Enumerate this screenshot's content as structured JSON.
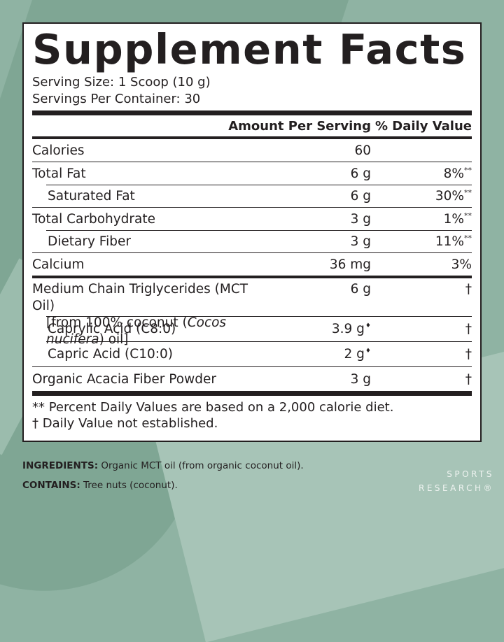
{
  "title": "Supplement Facts",
  "serving_size": "Serving Size: 1 Scoop (10 g)",
  "servings_per_container": "Servings Per Container: 30",
  "header": {
    "amount": "Amount Per Serving",
    "dv": "% Daily Value"
  },
  "rows": [
    {
      "name": "Calories",
      "amount": "60",
      "dv": ""
    },
    {
      "name": "Total Fat",
      "amount": "6 g",
      "dv": "8%",
      "dv_mark": "**"
    },
    {
      "name": "Saturated Fat",
      "amount": "6 g",
      "dv": "30%",
      "dv_mark": "**"
    },
    {
      "name": "Total Carbohydrate",
      "amount": "3 g",
      "dv": "1%",
      "dv_mark": "**"
    },
    {
      "name": "Dietary Fiber",
      "amount": "3 g",
      "dv": "11%",
      "dv_mark": "**"
    },
    {
      "name": "Calcium",
      "amount": "36 mg",
      "dv": "3%"
    }
  ],
  "mct": {
    "name": "Medium Chain Triglycerides (MCT Oil)",
    "sub_prefix": "[from 100% coconut (",
    "sub_italic": "Cocos nucifera",
    "sub_suffix": ") oil]",
    "amount": "6 g",
    "dv": "†"
  },
  "mct_children": [
    {
      "name": "Caprylic Acid (C8:0)",
      "amount": "3.9 g",
      "mark": "♦",
      "dv": "†"
    },
    {
      "name": "Capric Acid (C10:0)",
      "amount": "2 g",
      "mark": "♦",
      "dv": "†"
    }
  ],
  "acacia": {
    "name": "Organic Acacia Fiber Powder",
    "amount": "3 g",
    "dv": "†"
  },
  "footnotes": [
    "** Percent Daily Values are based on a 2,000 calorie diet.",
    "† Daily Value not established."
  ],
  "ingredients": {
    "label": "INGREDIENTS:",
    "text": " Organic MCT oil (from organic coconut oil)."
  },
  "contains": {
    "label": "CONTAINS:",
    "text": " Tree nuts (coconut)."
  },
  "brand": {
    "line1": "SPORTS",
    "line2": "RESEARCH",
    "mark": "®"
  },
  "colors": {
    "background": "#8fb3a3",
    "panel": "#ffffff",
    "ink": "#231f20"
  }
}
